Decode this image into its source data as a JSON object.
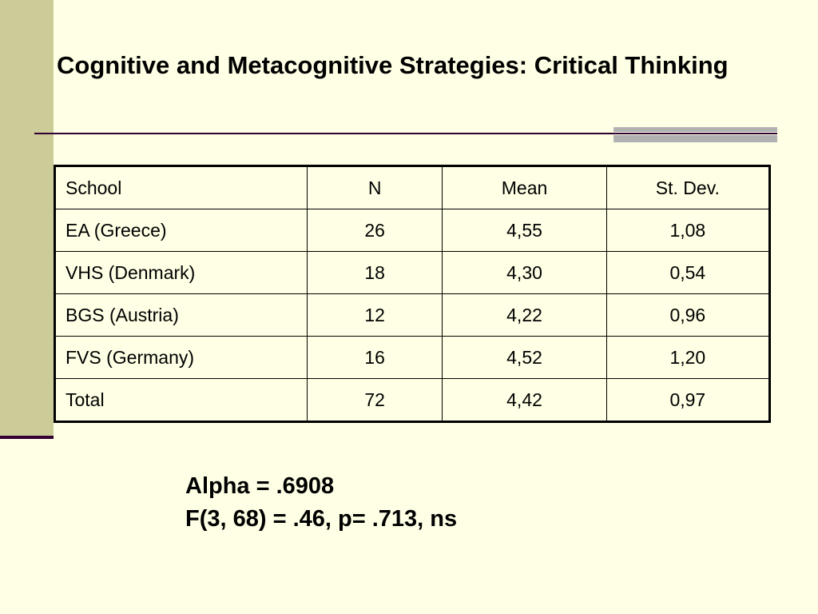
{
  "slide": {
    "title": "Cognitive and Metacognitive Strategies: Critical Thinking",
    "colors": {
      "background": "#FFFFE5",
      "left_band": "#CCCC99",
      "rule": "#330033",
      "accent_bar": "#B2B2B2"
    }
  },
  "table": {
    "headers": [
      "School",
      "N",
      "Mean",
      "St. Dev."
    ],
    "rows": [
      [
        "EA (Greece)",
        "26",
        "4,55",
        "1,08"
      ],
      [
        "VHS (Denmark)",
        "18",
        "4,30",
        "0,54"
      ],
      [
        "BGS (Austria)",
        "12",
        "4,22",
        "0,96"
      ],
      [
        "FVS (Germany)",
        "16",
        "4,52",
        "1,20"
      ],
      [
        "Total",
        "72",
        "4,42",
        "0,97"
      ]
    ]
  },
  "stats": {
    "alpha": "Alpha = .6908",
    "f_test": "F(3, 68) = .46, p= .713, ns"
  }
}
